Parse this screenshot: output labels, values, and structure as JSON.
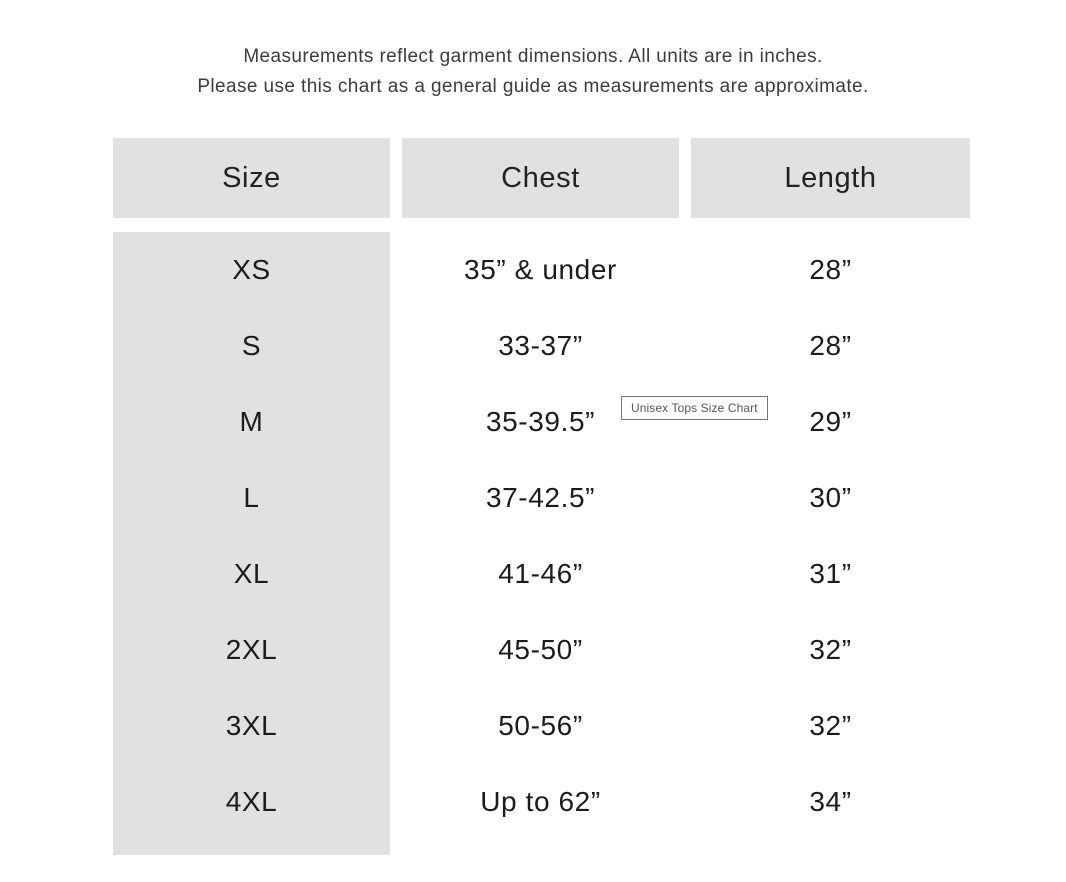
{
  "intro": {
    "line1": "Measurements reflect garment dimensions. All units are in inches.",
    "line2": "Please use this chart as a general guide as measurements are approximate."
  },
  "table": {
    "headers": [
      "Size",
      "Chest",
      "Length"
    ],
    "rows": [
      {
        "size": "XS",
        "chest": "35” & under",
        "length": "28”"
      },
      {
        "size": "S",
        "chest": "33-37”",
        "length": "28”"
      },
      {
        "size": "M",
        "chest": "35-39.5”",
        "length": "29”"
      },
      {
        "size": "L",
        "chest": "37-42.5”",
        "length": "30”"
      },
      {
        "size": "XL",
        "chest": "41-46”",
        "length": "31”"
      },
      {
        "size": "2XL",
        "chest": "45-50”",
        "length": "32”"
      },
      {
        "size": "3XL",
        "chest": "50-56”",
        "length": "32”"
      },
      {
        "size": "4XL",
        "chest": "Up to 62”",
        "length": "34”"
      }
    ]
  },
  "tooltip": {
    "text": "Unisex Tops Size Chart"
  },
  "colors": {
    "header_bg": "#e1e1e1",
    "table_text": "#1c1c1c",
    "intro_text": "#3c3c3c",
    "tooltip_border": "#737373"
  },
  "chart_data": {
    "type": "table",
    "title": "Unisex Tops Size Chart",
    "units": "inches",
    "columns": [
      "Size",
      "Chest",
      "Length"
    ],
    "rows": [
      [
        "XS",
        "35\" & under",
        "28\""
      ],
      [
        "S",
        "33-37\"",
        "28\""
      ],
      [
        "M",
        "35-39.5\"",
        "29\""
      ],
      [
        "L",
        "37-42.5\"",
        "30\""
      ],
      [
        "XL",
        "41-46\"",
        "31\""
      ],
      [
        "2XL",
        "45-50\"",
        "32\""
      ],
      [
        "3XL",
        "50-56\"",
        "32\""
      ],
      [
        "4XL",
        "Up to 62\"",
        "34\""
      ]
    ],
    "notes": [
      "Measurements reflect garment dimensions. All units are in inches.",
      "Please use this chart as a general guide as measurements are approximate."
    ]
  }
}
